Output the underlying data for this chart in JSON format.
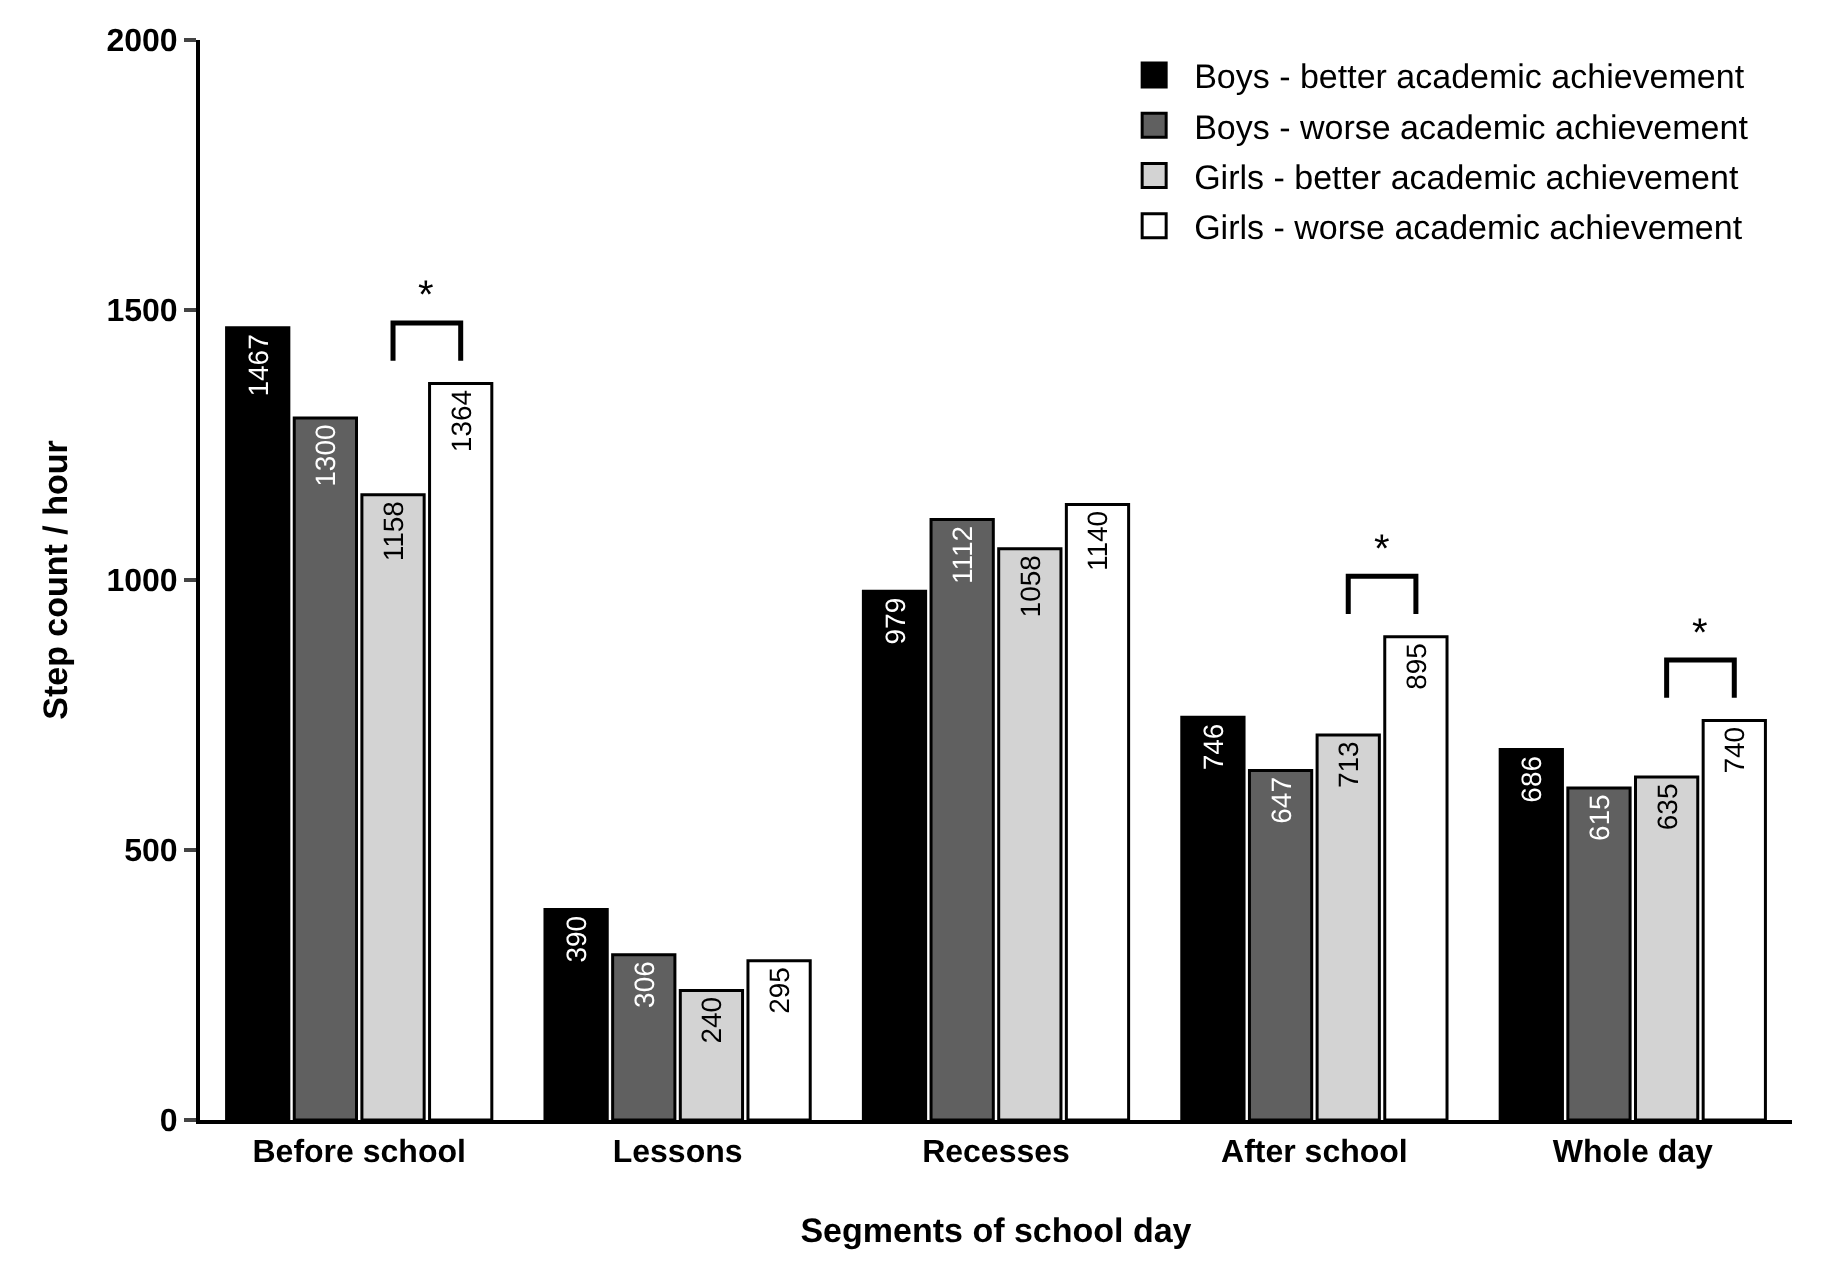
{
  "chart_data": {
    "type": "bar",
    "xlabel": "Segments of school day",
    "ylabel": "Step count / hour",
    "categories": [
      "Before school",
      "Lessons",
      "Recesses",
      "After school",
      "Whole day"
    ],
    "series": [
      {
        "name": "Boys - better academic achievement",
        "color": "#000000",
        "values": [
          1467,
          390,
          979,
          746,
          686
        ]
      },
      {
        "name": "Boys - worse academic achievement",
        "color": "#606060",
        "values": [
          1300,
          306,
          1112,
          647,
          615
        ]
      },
      {
        "name": "Girls - better academic achievement",
        "color": "#d3d3d3",
        "values": [
          1158,
          240,
          1058,
          713,
          635
        ]
      },
      {
        "name": "Girls - worse academic achievement",
        "color": "#ffffff",
        "values": [
          1364,
          295,
          1140,
          895,
          740
        ]
      }
    ],
    "ylim": [
      0,
      2000
    ],
    "yticks": [
      0,
      500,
      1000,
      1500,
      2000
    ],
    "legend": "top right",
    "data_labels": true,
    "annotations": [
      "*",
      "*",
      "*"
    ]
  }
}
